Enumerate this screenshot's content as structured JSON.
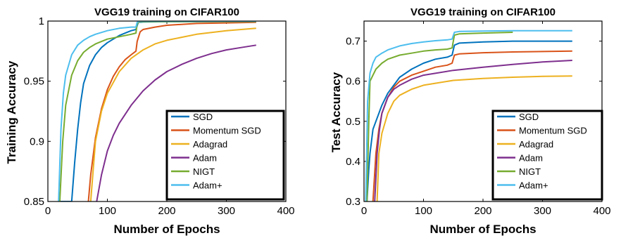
{
  "chart_data": [
    {
      "type": "line",
      "title": "VGG19 training on CIFAR100",
      "xlabel": "Number of Epochs",
      "ylabel": "Training Accuracy",
      "xlim": [
        0,
        400
      ],
      "ylim": [
        0.85,
        1.0
      ],
      "xticks": [
        "0",
        "100",
        "200",
        "300",
        "400"
      ],
      "yticks": [
        "0.85",
        "0.9",
        "0.95",
        "1"
      ],
      "legend_position": "lower-right",
      "grid": false,
      "series": [
        {
          "name": "SGD",
          "color": "#0072BD",
          "x": [
            20,
            40,
            45,
            50,
            55,
            60,
            70,
            80,
            90,
            100,
            110,
            120,
            130,
            140,
            148,
            152,
            160,
            200,
            250,
            300,
            350
          ],
          "y": [
            0.85,
            0.85,
            0.882,
            0.91,
            0.932,
            0.948,
            0.963,
            0.972,
            0.978,
            0.982,
            0.985,
            0.988,
            0.99,
            0.992,
            0.993,
            0.999,
            0.9993,
            0.9995,
            0.9996,
            0.9997,
            0.9997
          ]
        },
        {
          "name": "Momentum SGD",
          "color": "#D95319",
          "x": [
            68,
            72,
            80,
            90,
            100,
            110,
            120,
            130,
            140,
            148,
            150,
            155,
            160,
            180,
            200,
            250,
            300,
            350
          ],
          "y": [
            0.85,
            0.872,
            0.903,
            0.927,
            0.943,
            0.954,
            0.962,
            0.968,
            0.972,
            0.975,
            0.983,
            0.991,
            0.993,
            0.995,
            0.9965,
            0.998,
            0.9985,
            0.999
          ]
        },
        {
          "name": "Adagrad",
          "color": "#EDB120",
          "x": [
            72,
            80,
            90,
            100,
            120,
            140,
            160,
            180,
            200,
            250,
            300,
            350
          ],
          "y": [
            0.85,
            0.9,
            0.925,
            0.94,
            0.958,
            0.969,
            0.976,
            0.981,
            0.984,
            0.989,
            0.992,
            0.994
          ]
        },
        {
          "name": "Adam",
          "color": "#7E2F8E",
          "x": [
            82,
            90,
            100,
            110,
            120,
            140,
            160,
            180,
            200,
            225,
            250,
            275,
            300,
            325,
            350
          ],
          "y": [
            0.85,
            0.872,
            0.892,
            0.905,
            0.915,
            0.93,
            0.942,
            0.951,
            0.958,
            0.964,
            0.969,
            0.973,
            0.976,
            0.978,
            0.98
          ]
        },
        {
          "name": "NIGT",
          "color": "#77AC30",
          "x": [
            20,
            25,
            30,
            40,
            50,
            60,
            70,
            80,
            90,
            100,
            120,
            140,
            148,
            150,
            155,
            200,
            250,
            300,
            350
          ],
          "y": [
            0.85,
            0.9,
            0.93,
            0.955,
            0.967,
            0.974,
            0.978,
            0.981,
            0.983,
            0.985,
            0.987,
            0.989,
            0.99,
            0.998,
            0.9995,
            0.9995,
            0.9996,
            0.9996,
            0.9996
          ]
        },
        {
          "name": "Adam+",
          "color": "#4DBEEE",
          "x": [
            18,
            22,
            26,
            30,
            40,
            50,
            60,
            70,
            80,
            100,
            120,
            140,
            148,
            150,
            155,
            200,
            250,
            300,
            350
          ],
          "y": [
            0.85,
            0.91,
            0.94,
            0.955,
            0.972,
            0.98,
            0.984,
            0.987,
            0.989,
            0.992,
            0.994,
            0.995,
            0.995,
            0.999,
            0.9998,
            0.9998,
            0.9998,
            0.9998,
            0.9998
          ]
        }
      ]
    },
    {
      "type": "line",
      "title": "VGG19 training on CIFAR100",
      "xlabel": "Number of Epochs",
      "ylabel": "Test Accuracy",
      "xlim": [
        0,
        400
      ],
      "ylim": [
        0.3,
        0.75
      ],
      "xticks": [
        "0",
        "100",
        "200",
        "300",
        "400"
      ],
      "yticks": [
        "0.3",
        "0.4",
        "0.5",
        "0.6",
        "0.7"
      ],
      "legend_position": "lower-right",
      "grid": false,
      "series": [
        {
          "name": "SGD",
          "color": "#0072BD",
          "x": [
            5,
            8,
            10,
            15,
            20,
            30,
            40,
            50,
            60,
            80,
            100,
            120,
            140,
            148,
            152,
            160,
            200,
            250,
            300,
            350
          ],
          "y": [
            0.3,
            0.38,
            0.42,
            0.48,
            0.5,
            0.54,
            0.57,
            0.59,
            0.61,
            0.63,
            0.645,
            0.655,
            0.66,
            0.665,
            0.69,
            0.695,
            0.698,
            0.7,
            0.7,
            0.7
          ]
        },
        {
          "name": "Momentum SGD",
          "color": "#D95319",
          "x": [
            15,
            20,
            25,
            30,
            40,
            50,
            60,
            80,
            100,
            120,
            140,
            148,
            152,
            160,
            200,
            250,
            300,
            350
          ],
          "y": [
            0.3,
            0.42,
            0.48,
            0.52,
            0.56,
            0.585,
            0.6,
            0.615,
            0.625,
            0.635,
            0.64,
            0.645,
            0.665,
            0.668,
            0.671,
            0.673,
            0.674,
            0.675
          ]
        },
        {
          "name": "Adagrad",
          "color": "#EDB120",
          "x": [
            22,
            25,
            30,
            40,
            50,
            60,
            80,
            100,
            150,
            200,
            250,
            300,
            350
          ],
          "y": [
            0.3,
            0.42,
            0.47,
            0.52,
            0.55,
            0.565,
            0.58,
            0.59,
            0.602,
            0.607,
            0.61,
            0.612,
            0.613
          ]
        },
        {
          "name": "Adam",
          "color": "#7E2F8E",
          "x": [
            18,
            22,
            26,
            30,
            40,
            50,
            60,
            80,
            100,
            150,
            200,
            250,
            300,
            350
          ],
          "y": [
            0.3,
            0.42,
            0.48,
            0.52,
            0.56,
            0.58,
            0.59,
            0.605,
            0.615,
            0.627,
            0.635,
            0.642,
            0.648,
            0.652
          ]
        },
        {
          "name": "NIGT",
          "color": "#77AC30",
          "x": [
            5,
            8,
            10,
            15,
            20,
            30,
            40,
            60,
            80,
            100,
            120,
            140,
            148,
            152,
            160,
            200,
            250
          ],
          "y": [
            0.3,
            0.5,
            0.6,
            0.615,
            0.63,
            0.645,
            0.655,
            0.665,
            0.67,
            0.675,
            0.678,
            0.68,
            0.683,
            0.715,
            0.718,
            0.72,
            0.722
          ]
        },
        {
          "name": "Adam+",
          "color": "#4DBEEE",
          "x": [
            3,
            6,
            10,
            15,
            20,
            30,
            40,
            60,
            80,
            100,
            120,
            140,
            148,
            152,
            160,
            200,
            250,
            300,
            350
          ],
          "y": [
            0.3,
            0.55,
            0.62,
            0.645,
            0.66,
            0.67,
            0.678,
            0.688,
            0.694,
            0.698,
            0.701,
            0.703,
            0.705,
            0.722,
            0.724,
            0.725,
            0.726,
            0.726,
            0.726
          ]
        }
      ]
    }
  ]
}
